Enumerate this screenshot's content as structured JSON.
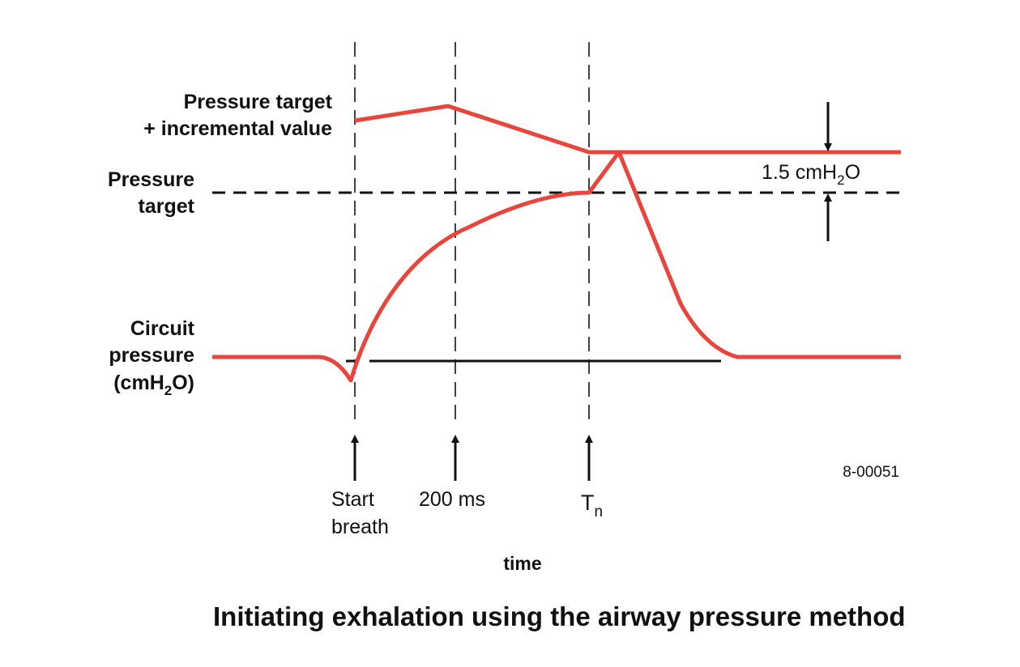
{
  "colors": {
    "curve": "#e8453c",
    "ink": "#111111",
    "background": "#ffffff"
  },
  "labels": {
    "pressure_target_incremental_line1": "Pressure target",
    "pressure_target_incremental_line2": "+ incremental value",
    "pressure_target_line1": "Pressure",
    "pressure_target_line2": "target",
    "circuit_pressure_line1": "Circuit",
    "circuit_pressure_line2": "pressure",
    "circuit_pressure_unit_prefix": "(cmH",
    "circuit_pressure_unit_sub": "2",
    "circuit_pressure_unit_suffix": "O)",
    "offset_value_prefix": "1.5 cmH",
    "offset_value_sub": "2",
    "offset_value_suffix": "O",
    "marker_start_line1": "Start",
    "marker_start_line2": "breath",
    "marker_200ms": "200 ms",
    "marker_tn_main": "T",
    "marker_tn_sub": "n",
    "figure_id": "8-00051",
    "x_axis": "time",
    "caption": "Initiating exhalation using the airway pressure method"
  }
}
